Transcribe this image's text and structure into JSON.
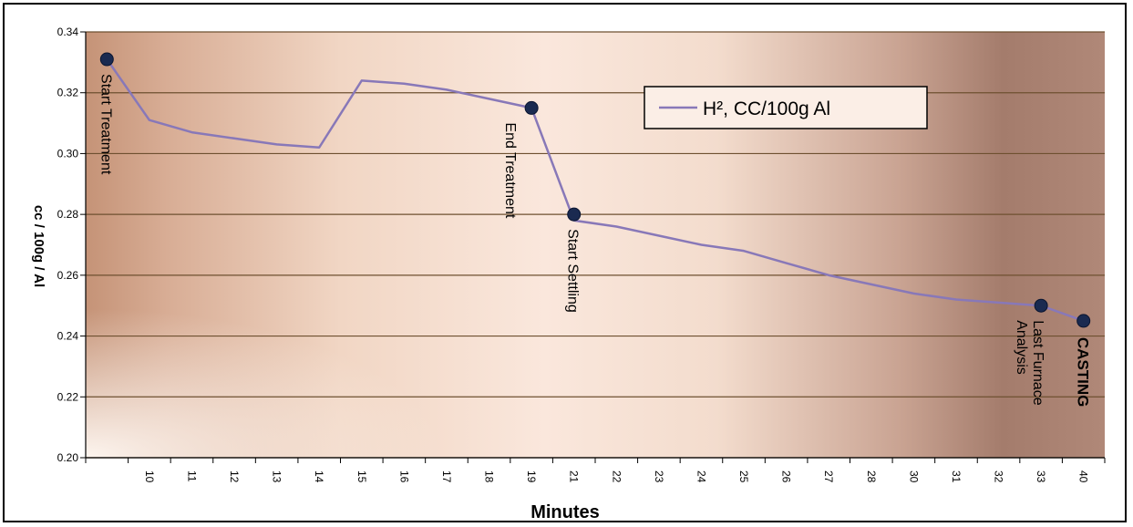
{
  "chart_data": {
    "type": "line",
    "title": "",
    "xlabel": "Minutes",
    "ylabel": "cc / 100g / Al",
    "ylim": [
      0.2,
      0.34
    ],
    "y_ticks": [
      "0.34",
      "0.32",
      "0.30",
      "0.28",
      "0.26",
      "0.24",
      "0.22",
      "0.20"
    ],
    "y_tick_values": [
      0.34,
      0.32,
      0.3,
      0.28,
      0.26,
      0.24,
      0.22,
      0.2
    ],
    "categories": [
      "",
      "10",
      "11",
      "12",
      "13",
      "14",
      "15",
      "16",
      "17",
      "18",
      "19",
      "21",
      "22",
      "23",
      "24",
      "25",
      "26",
      "27",
      "28",
      "30",
      "31",
      "32",
      "33",
      "40"
    ],
    "grid": true,
    "legend_placement": "top-right",
    "series": [
      {
        "name": "H², CC/100g Al",
        "color": "#8878b8",
        "values": [
          0.331,
          0.311,
          0.307,
          0.305,
          0.303,
          0.302,
          0.324,
          0.323,
          0.321,
          0.318,
          0.315,
          0.278,
          0.276,
          0.273,
          0.27,
          0.268,
          0.264,
          0.26,
          0.257,
          0.254,
          0.252,
          0.251,
          0.25,
          0.245
        ]
      }
    ],
    "markers": [
      {
        "index": 0,
        "value": 0.331,
        "label": "Start Treatment",
        "bold": false
      },
      {
        "index": 10,
        "value": 0.315,
        "label": "End Treatment",
        "bold": false
      },
      {
        "index": 11,
        "value": 0.28,
        "label": "Start Settling",
        "bold": false
      },
      {
        "index": 22,
        "value": 0.25,
        "label": "Last Furnace Analysis",
        "bold": false
      },
      {
        "index": 23,
        "value": 0.245,
        "label": "CASTING",
        "bold": true
      }
    ],
    "marker_color": "#1a2a50"
  }
}
